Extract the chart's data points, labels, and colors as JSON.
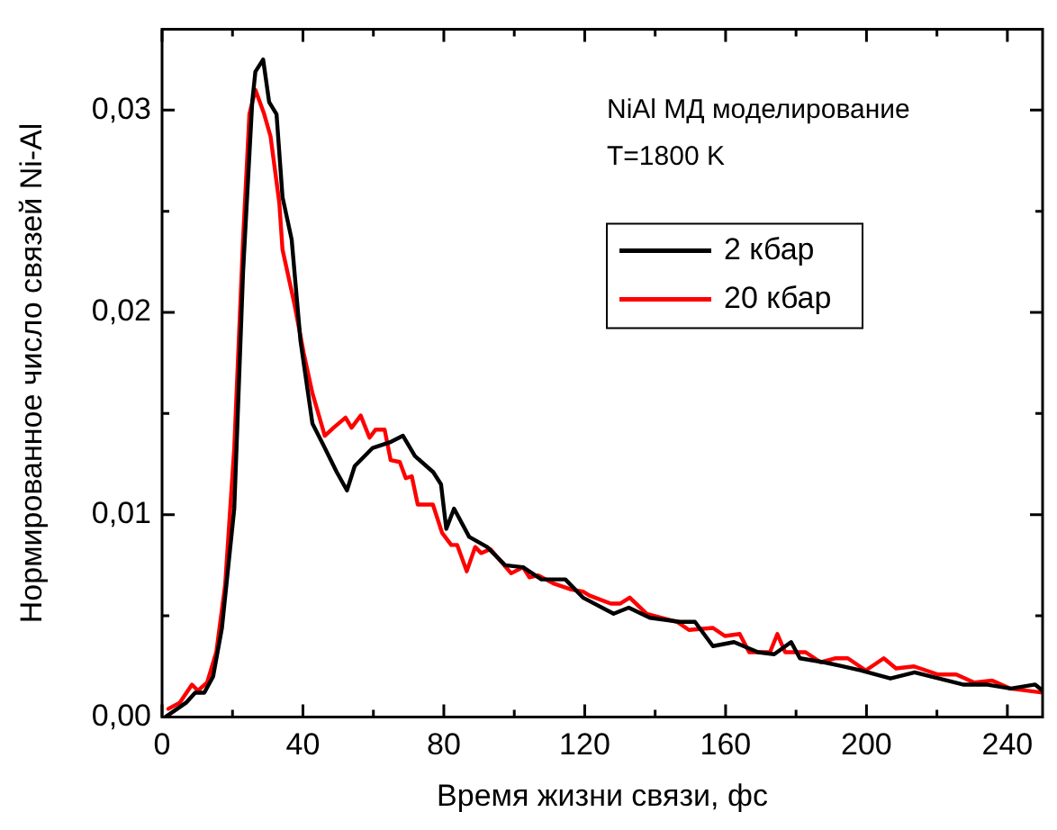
{
  "chart_data": {
    "type": "line",
    "xlabel": "Время жизни связи, фс",
    "ylabel": "Нормированное число связей Ni-Al",
    "annotations": [
      "NiAl МД моделирование",
      "T=1800 K"
    ],
    "xlim": [
      0,
      250
    ],
    "xticks": [
      0,
      {
        "value": 20,
        "label": null
      },
      40,
      {
        "value": 60,
        "label": null
      },
      80,
      {
        "value": 100,
        "label": null
      },
      120,
      {
        "value": 140,
        "label": null
      },
      160,
      {
        "value": 180,
        "label": null
      },
      200,
      {
        "value": 220,
        "label": null
      },
      240
    ],
    "ylim": [
      0,
      0.034
    ],
    "yticks": [
      {
        "value": 0,
        "label": "0,00"
      },
      {
        "value": 0.005,
        "label": null
      },
      {
        "value": 0.01,
        "label": "0,01"
      },
      {
        "value": 0.015,
        "label": null
      },
      {
        "value": 0.02,
        "label": "0,02"
      },
      {
        "value": 0.025,
        "label": null
      },
      {
        "value": 0.03,
        "label": "0,03"
      }
    ],
    "grid": false,
    "legend": "top right",
    "marker": "none",
    "line_style": "solid",
    "series": [
      {
        "name": "2 кбар",
        "color": "#000000",
        "x": [
          1,
          6.8,
          9.4,
          12,
          14.5,
          17,
          20.5,
          23,
          25.6,
          26.5,
          28.7,
          30.4,
          32.5,
          34.2,
          36.8,
          39.3,
          42.7,
          46.2,
          49.6,
          52.5,
          54.7,
          59.8,
          65,
          68.4,
          71.8,
          77,
          79.2,
          80.7,
          82.9,
          87.2,
          92.3,
          97.4,
          102.5,
          107.7,
          114.5,
          119.5,
          128.2,
          132.5,
          138.5,
          147,
          151.3,
          156.4,
          162.4,
          169.2,
          173.8,
          178.6,
          181.1,
          188,
          193.2,
          198.3,
          206.8,
          213.7,
          220.5,
          227.4,
          234,
          241,
          247.9,
          250
        ],
        "values": [
          0,
          0.0007,
          0.0012,
          0.0012,
          0.002,
          0.0044,
          0.0103,
          0.022,
          0.0304,
          0.0319,
          0.0325,
          0.0304,
          0.0298,
          0.0257,
          0.0236,
          0.0186,
          0.0145,
          0.0133,
          0.0121,
          0.0112,
          0.0124,
          0.0133,
          0.0136,
          0.0139,
          0.0129,
          0.0121,
          0.0115,
          0.0093,
          0.0103,
          0.0089,
          0.0084,
          0.0075,
          0.0074,
          0.0068,
          0.0068,
          0.0059,
          0.0051,
          0.0054,
          0.0049,
          0.0047,
          0.0047,
          0.0035,
          0.0037,
          0.0032,
          0.0031,
          0.0037,
          0.0029,
          0.0027,
          0.0025,
          0.0023,
          0.0019,
          0.0022,
          0.0019,
          0.0016,
          0.0016,
          0.0014,
          0.0016,
          0.0013
        ]
      },
      {
        "name": "20 кбар",
        "color": "#ff0000",
        "x": [
          1.8,
          5,
          8.5,
          10.2,
          12.8,
          15.4,
          17.9,
          20.5,
          23,
          24.8,
          26.5,
          29,
          30.8,
          33.3,
          34.2,
          37.6,
          40.2,
          42.7,
          46.2,
          48.7,
          52.1,
          53.8,
          56.4,
          58.9,
          60.6,
          63.2,
          64.9,
          67.5,
          69.2,
          70.9,
          72.6,
          76.9,
          79.5,
          82.1,
          83.8,
          86.5,
          88.9,
          90.6,
          93.2,
          99.1,
          102.5,
          104.3,
          106.8,
          111.1,
          116.2,
          119.5,
          121.4,
          127.4,
          130,
          132.8,
          137.6,
          146.2,
          149.6,
          156.4,
          159.8,
          164,
          166.7,
          172.6,
          174.7,
          176.9,
          182.7,
          187,
          191.3,
          194.7,
          199.8,
          204.9,
          208.4,
          213.5,
          220.3,
          225.5,
          230.6,
          235.7,
          240.9,
          250
        ],
        "values": [
          0.0004,
          0.0007,
          0.0016,
          0.0013,
          0.0017,
          0.0032,
          0.0065,
          0.0133,
          0.0236,
          0.0298,
          0.031,
          0.0298,
          0.0287,
          0.0254,
          0.0231,
          0.0204,
          0.018,
          0.016,
          0.0139,
          0.0143,
          0.0148,
          0.0143,
          0.0149,
          0.0138,
          0.0142,
          0.0142,
          0.0127,
          0.0126,
          0.0118,
          0.0119,
          0.0105,
          0.0105,
          0.0091,
          0.0085,
          0.0085,
          0.0072,
          0.0084,
          0.0081,
          0.0083,
          0.0071,
          0.0074,
          0.0069,
          0.007,
          0.0066,
          0.0063,
          0.0062,
          0.006,
          0.0056,
          0.0056,
          0.0059,
          0.0051,
          0.0047,
          0.0043,
          0.0044,
          0.004,
          0.0041,
          0.0032,
          0.0032,
          0.0041,
          0.0032,
          0.0032,
          0.0027,
          0.0029,
          0.0029,
          0.0023,
          0.0029,
          0.0024,
          0.0025,
          0.0021,
          0.0021,
          0.0017,
          0.0018,
          0.0014,
          0.0012
        ]
      }
    ]
  }
}
